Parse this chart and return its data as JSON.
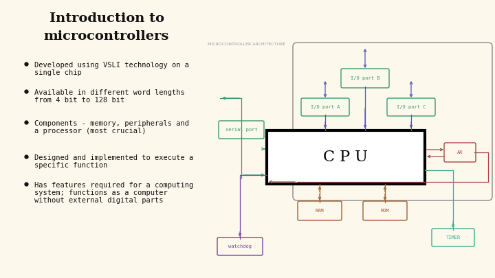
{
  "bg_color": "#fdf8ec",
  "title_line1": "Introduction to",
  "title_line2": "microcontrollers",
  "title_fontsize": 14,
  "title_color": "#111111",
  "bullet_points": [
    [
      "Developed using VSLI technology on a",
      "single chip"
    ],
    [
      "Available in different word lengths",
      "from 4 bit to 128 bit"
    ],
    [
      "Components - memory, peripherals and",
      "a processor (most crucial)"
    ],
    [
      "Designed and implemented to execute a",
      "specific function"
    ],
    [
      "Has features required for a computing",
      "system; functions as a computer",
      "without external digital parts"
    ]
  ],
  "bullet_fontsize": 7.5,
  "bullet_color": "#111111",
  "diagram_label": "MICROCONTROLLER ARCHITECTURE",
  "cpu_label": "C P U",
  "io_port_color": "#3a9970",
  "serial_port_color": "#3a9970",
  "ram_rom_color": "#a06030",
  "ax_color": "#aa4444",
  "timer_color": "#3aaa99",
  "watchdog_color": "#7744aa",
  "arrow_io": "#5555bb",
  "arrow_serial": "#3a9970",
  "arrow_ram": "#a06030",
  "arrow_ax": "#aa4444",
  "arrow_timer": "#3aaa99",
  "arrow_watchdog": "#7744aa",
  "outer_box_color": "#888888",
  "cpu_box_color": "#000000"
}
